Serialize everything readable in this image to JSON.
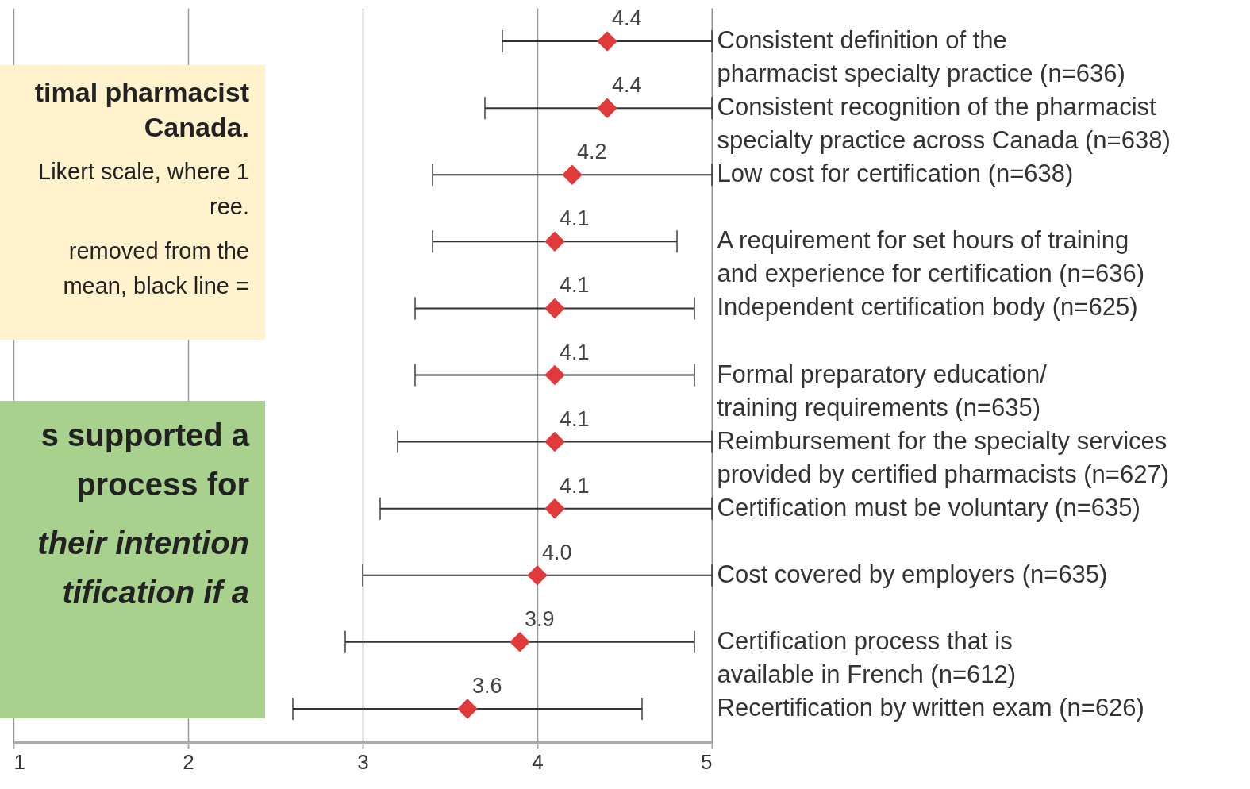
{
  "chart_data": {
    "type": "scatter",
    "orientation": "horizontal",
    "categories": [
      "Consistent definition of the\npharmacist specialty practice (n=636)",
      "Consistent recognition of the pharmacist\nspecialty practice across Canada (n=638)",
      "Low cost for certification (n=638)",
      "A requirement for set hours of training\nand experience for certification (n=636)",
      "Independent certification body (n=625)",
      "Formal preparatory education/\ntraining requirements (n=635)",
      "Reimbursement for the specialty services\nprovided by certified pharmacists (n=627)",
      "Certification must be voluntary (n=635)",
      "Cost covered by employers (n=635)",
      "Certification process that is\navailable in French (n=612)",
      "Recertification by written exam (n=626)"
    ],
    "values": [
      4.4,
      4.4,
      4.2,
      4.1,
      4.1,
      4.1,
      4.1,
      4.1,
      4.0,
      3.9,
      3.6
    ],
    "errors": [
      [
        3.8,
        5
      ],
      [
        3.7,
        5
      ],
      [
        3.4,
        5
      ],
      [
        3.4,
        4.8
      ],
      [
        3.3,
        4.9
      ],
      [
        3.3,
        4.9
      ],
      [
        3.2,
        5
      ],
      [
        3.1,
        5
      ],
      [
        3.0,
        5
      ],
      [
        2.9,
        4.9
      ],
      [
        2.6,
        4.6
      ]
    ],
    "value_labels": [
      "4.4",
      "4.4",
      "4.2",
      "4.1",
      "4.1",
      "4.1",
      "4.1",
      "4.1",
      "4.0",
      "3.9",
      "3.6"
    ],
    "color": "#e03a3a",
    "marker": "diamond",
    "xlim": [
      1,
      5
    ],
    "xticks": [
      1,
      2,
      3,
      4,
      5
    ],
    "grid": "x",
    "annotations": [
      "timal pharmacist\nCanada.",
      "Likert scale, where 1\nree.",
      "removed from the\nmean, black line =",
      "s supported a\nprocess for",
      "their intention\ntification if a"
    ]
  }
}
